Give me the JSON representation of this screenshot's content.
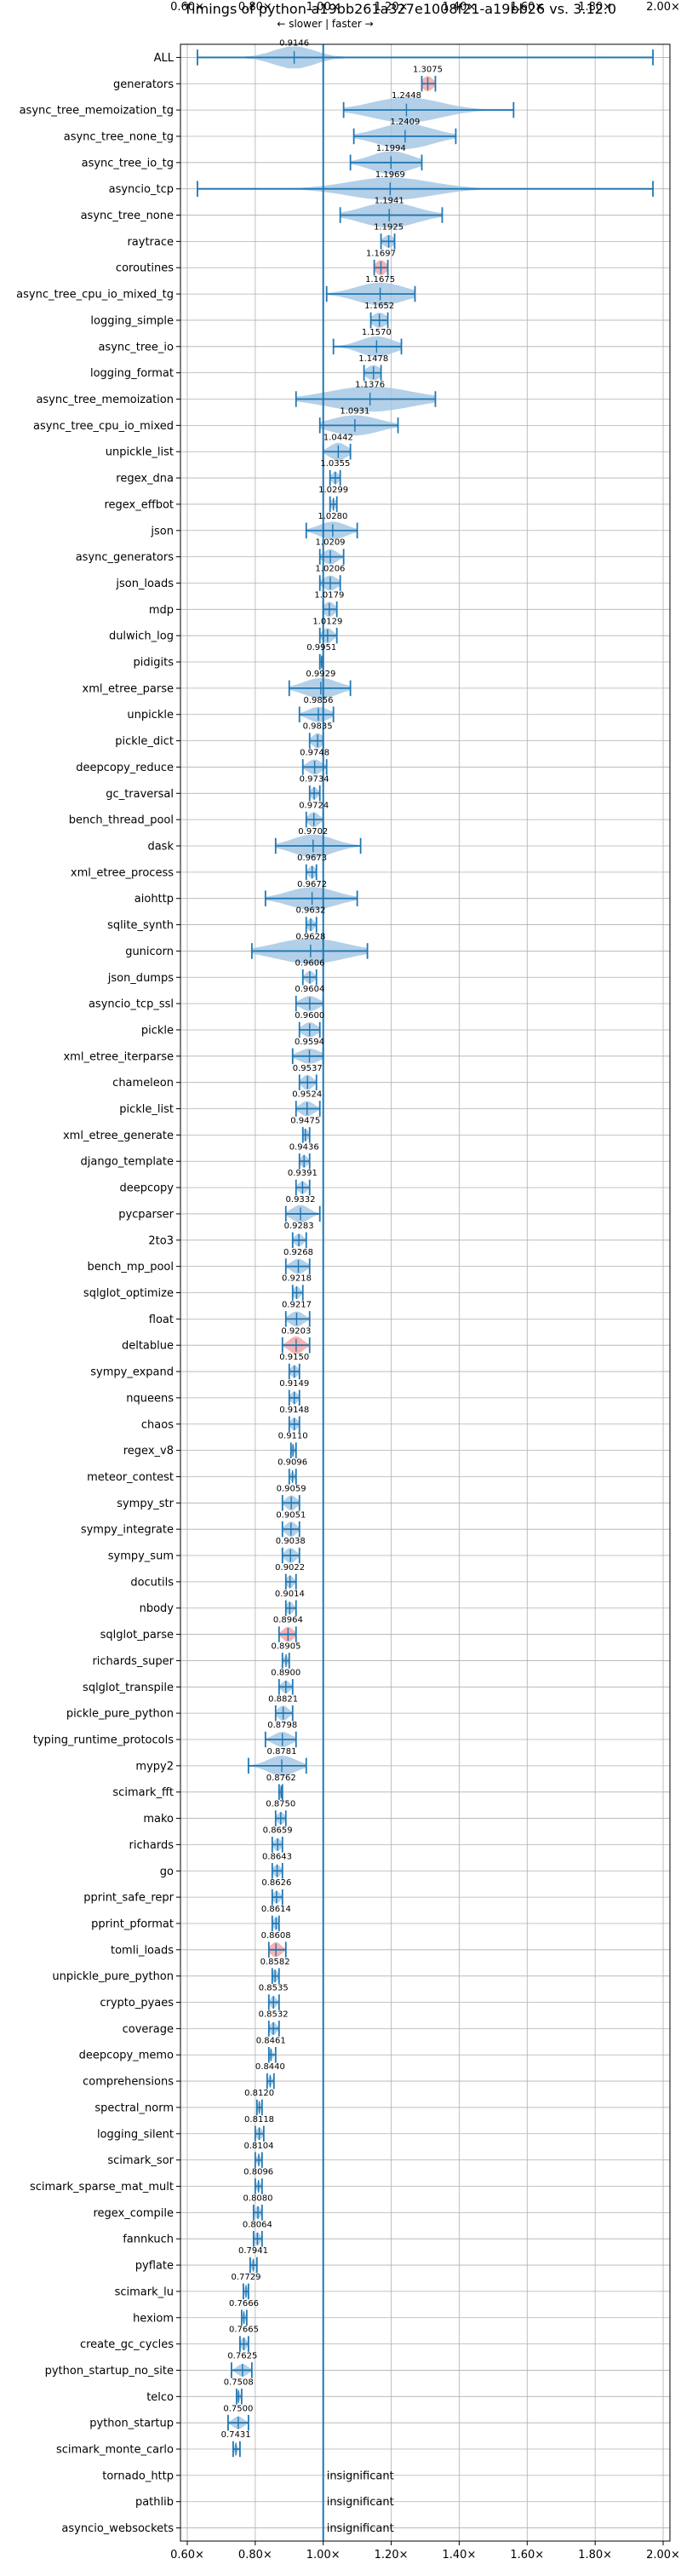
{
  "chart_data": {
    "type": "violin",
    "title": "Timings of python-a19bb261a327e1008f21-a19bb26 vs. 3.12.0",
    "direction_hint": "← slower | faster →",
    "x_ticks": [
      0.6,
      0.8,
      1.0,
      1.2,
      1.4,
      1.6,
      1.8,
      2.0
    ],
    "x_tick_labels": [
      "0.60×",
      "0.80×",
      "1.00×",
      "1.20×",
      "1.40×",
      "1.60×",
      "1.80×",
      "2.00×"
    ],
    "xlim": [
      0.58,
      2.02
    ],
    "reference_line": 1.0,
    "grid": true,
    "colors": {
      "violin": "#a6c8e4",
      "line": "#1f77b4",
      "highlight": "#f4a6a6",
      "grid": "#b0b0b0"
    },
    "benchmarks": [
      {
        "name": "ALL",
        "value": 0.9146,
        "min": 0.63,
        "max": 1.97,
        "spread": 0.06,
        "width": 0.9,
        "label": "0.9146"
      },
      {
        "name": "generators",
        "value": 1.3075,
        "min": 1.29,
        "max": 1.33,
        "spread": 0.015,
        "width": 0.6,
        "label": "1.3075",
        "highlight": true
      },
      {
        "name": "async_tree_memoization_tg",
        "value": 1.2448,
        "min": 1.06,
        "max": 1.56,
        "spread": 0.1,
        "width": 1.0,
        "label": "1.2448"
      },
      {
        "name": "async_tree_none_tg",
        "value": 1.2409,
        "min": 1.09,
        "max": 1.39,
        "spread": 0.08,
        "width": 1.0,
        "label": "1.2409"
      },
      {
        "name": "async_tree_io_tg",
        "value": 1.1994,
        "min": 1.08,
        "max": 1.29,
        "spread": 0.06,
        "width": 0.9,
        "label": "1.1994"
      },
      {
        "name": "asyncio_tcp",
        "value": 1.1969,
        "min": 0.63,
        "max": 1.97,
        "spread": 0.12,
        "width": 0.9,
        "label": "1.1969"
      },
      {
        "name": "async_tree_none",
        "value": 1.1941,
        "min": 1.05,
        "max": 1.35,
        "spread": 0.08,
        "width": 1.0,
        "label": "1.1941"
      },
      {
        "name": "raytrace",
        "value": 1.1925,
        "min": 1.17,
        "max": 1.21,
        "spread": 0.015,
        "width": 0.5,
        "label": "1.1925"
      },
      {
        "name": "coroutines",
        "value": 1.1697,
        "min": 1.15,
        "max": 1.19,
        "spread": 0.015,
        "width": 0.6,
        "label": "1.1697",
        "highlight": true
      },
      {
        "name": "async_tree_cpu_io_mixed_tg",
        "value": 1.1675,
        "min": 1.01,
        "max": 1.27,
        "spread": 0.07,
        "width": 0.9,
        "label": "1.1675"
      },
      {
        "name": "logging_simple",
        "value": 1.1652,
        "min": 1.14,
        "max": 1.19,
        "spread": 0.02,
        "width": 0.6,
        "label": "1.1652"
      },
      {
        "name": "async_tree_io",
        "value": 1.157,
        "min": 1.03,
        "max": 1.23,
        "spread": 0.05,
        "width": 0.8,
        "label": "1.1570"
      },
      {
        "name": "logging_format",
        "value": 1.1478,
        "min": 1.12,
        "max": 1.17,
        "spread": 0.02,
        "width": 0.6,
        "label": "1.1478"
      },
      {
        "name": "async_tree_memoization",
        "value": 1.1376,
        "min": 0.92,
        "max": 1.33,
        "spread": 0.12,
        "width": 1.0,
        "label": "1.1376"
      },
      {
        "name": "async_tree_cpu_io_mixed",
        "value": 1.0931,
        "min": 0.99,
        "max": 1.22,
        "spread": 0.07,
        "width": 0.8,
        "label": "1.0931"
      },
      {
        "name": "unpickle_list",
        "value": 1.0442,
        "min": 1.0,
        "max": 1.08,
        "spread": 0.025,
        "width": 0.7,
        "label": "1.0442"
      },
      {
        "name": "regex_dna",
        "value": 1.0355,
        "min": 1.02,
        "max": 1.05,
        "spread": 0.01,
        "width": 0.5,
        "label": "1.0355"
      },
      {
        "name": "regex_effbot",
        "value": 1.0299,
        "min": 1.02,
        "max": 1.04,
        "spread": 0.008,
        "width": 0.4,
        "label": "1.0299"
      },
      {
        "name": "json",
        "value": 1.028,
        "min": 0.95,
        "max": 1.1,
        "spread": 0.04,
        "width": 0.7,
        "label": "1.0280"
      },
      {
        "name": "async_generators",
        "value": 1.0209,
        "min": 0.99,
        "max": 1.06,
        "spread": 0.02,
        "width": 0.6,
        "label": "1.0209"
      },
      {
        "name": "json_loads",
        "value": 1.0206,
        "min": 0.99,
        "max": 1.05,
        "spread": 0.02,
        "width": 0.6,
        "label": "1.0206"
      },
      {
        "name": "mdp",
        "value": 1.0179,
        "min": 1.0,
        "max": 1.04,
        "spread": 0.015,
        "width": 0.6,
        "label": "1.0179"
      },
      {
        "name": "dulwich_log",
        "value": 1.0129,
        "min": 0.99,
        "max": 1.04,
        "spread": 0.015,
        "width": 0.6,
        "label": "1.0129"
      },
      {
        "name": "pidigits",
        "value": 0.9951,
        "min": 0.99,
        "max": 1.0,
        "spread": 0.005,
        "width": 0.4,
        "label": "0.9951"
      },
      {
        "name": "xml_etree_parse",
        "value": 0.9929,
        "min": 0.9,
        "max": 1.08,
        "spread": 0.05,
        "width": 0.8,
        "label": "0.9929"
      },
      {
        "name": "unpickle",
        "value": 0.9856,
        "min": 0.93,
        "max": 1.03,
        "spread": 0.03,
        "width": 0.6,
        "label": "0.9856"
      },
      {
        "name": "pickle_dict",
        "value": 0.9835,
        "min": 0.96,
        "max": 1.0,
        "spread": 0.015,
        "width": 0.6,
        "label": "0.9835"
      },
      {
        "name": "deepcopy_reduce",
        "value": 0.9748,
        "min": 0.94,
        "max": 1.01,
        "spread": 0.02,
        "width": 0.6,
        "label": "0.9748"
      },
      {
        "name": "gc_traversal",
        "value": 0.9734,
        "min": 0.96,
        "max": 0.99,
        "spread": 0.01,
        "width": 0.5,
        "label": "0.9734"
      },
      {
        "name": "bench_thread_pool",
        "value": 0.9724,
        "min": 0.95,
        "max": 1.0,
        "spread": 0.015,
        "width": 0.6,
        "label": "0.9724"
      },
      {
        "name": "dask",
        "value": 0.9702,
        "min": 0.86,
        "max": 1.11,
        "spread": 0.06,
        "width": 0.9,
        "label": "0.9702"
      },
      {
        "name": "xml_etree_process",
        "value": 0.9673,
        "min": 0.95,
        "max": 0.98,
        "spread": 0.01,
        "width": 0.5,
        "label": "0.9673"
      },
      {
        "name": "aiohttp",
        "value": 0.9672,
        "min": 0.83,
        "max": 1.1,
        "spread": 0.07,
        "width": 0.9,
        "label": "0.9672"
      },
      {
        "name": "sqlite_synth",
        "value": 0.9632,
        "min": 0.95,
        "max": 0.98,
        "spread": 0.01,
        "width": 0.5,
        "label": "0.9632"
      },
      {
        "name": "gunicorn",
        "value": 0.9628,
        "min": 0.79,
        "max": 1.13,
        "spread": 0.1,
        "width": 1.0,
        "label": "0.9628"
      },
      {
        "name": "json_dumps",
        "value": 0.9606,
        "min": 0.94,
        "max": 0.98,
        "spread": 0.012,
        "width": 0.5,
        "label": "0.9606"
      },
      {
        "name": "asyncio_tcp_ssl",
        "value": 0.9604,
        "min": 0.92,
        "max": 1.0,
        "spread": 0.025,
        "width": 0.6,
        "label": "0.9604"
      },
      {
        "name": "pickle",
        "value": 0.96,
        "min": 0.93,
        "max": 0.99,
        "spread": 0.02,
        "width": 0.6,
        "label": "0.9600"
      },
      {
        "name": "xml_etree_iterparse",
        "value": 0.9594,
        "min": 0.91,
        "max": 1.0,
        "spread": 0.03,
        "width": 0.6,
        "label": "0.9594"
      },
      {
        "name": "chameleon",
        "value": 0.9537,
        "min": 0.93,
        "max": 0.98,
        "spread": 0.015,
        "width": 0.6,
        "label": "0.9537"
      },
      {
        "name": "pickle_list",
        "value": 0.9524,
        "min": 0.92,
        "max": 0.99,
        "spread": 0.02,
        "width": 0.6,
        "label": "0.9524"
      },
      {
        "name": "xml_etree_generate",
        "value": 0.9475,
        "min": 0.94,
        "max": 0.96,
        "spread": 0.008,
        "width": 0.5,
        "label": "0.9475"
      },
      {
        "name": "django_template",
        "value": 0.9436,
        "min": 0.93,
        "max": 0.96,
        "spread": 0.01,
        "width": 0.5,
        "label": "0.9436"
      },
      {
        "name": "deepcopy",
        "value": 0.9391,
        "min": 0.92,
        "max": 0.96,
        "spread": 0.012,
        "width": 0.5,
        "label": "0.9391"
      },
      {
        "name": "pycparser",
        "value": 0.9332,
        "min": 0.89,
        "max": 0.99,
        "spread": 0.025,
        "width": 0.7,
        "label": "0.9332"
      },
      {
        "name": "2to3",
        "value": 0.9283,
        "min": 0.91,
        "max": 0.95,
        "spread": 0.012,
        "width": 0.5,
        "label": "0.9283"
      },
      {
        "name": "bench_mp_pool",
        "value": 0.9268,
        "min": 0.89,
        "max": 0.96,
        "spread": 0.02,
        "width": 0.6,
        "label": "0.9268"
      },
      {
        "name": "sqlglot_optimize",
        "value": 0.9218,
        "min": 0.91,
        "max": 0.94,
        "spread": 0.01,
        "width": 0.5,
        "label": "0.9218"
      },
      {
        "name": "float",
        "value": 0.9217,
        "min": 0.89,
        "max": 0.96,
        "spread": 0.02,
        "width": 0.6,
        "label": "0.9217"
      },
      {
        "name": "deltablue",
        "value": 0.9203,
        "min": 0.88,
        "max": 0.96,
        "spread": 0.02,
        "width": 0.7,
        "label": "0.9203",
        "highlight": true
      },
      {
        "name": "sympy_expand",
        "value": 0.915,
        "min": 0.9,
        "max": 0.93,
        "spread": 0.01,
        "width": 0.5,
        "label": "0.9150"
      },
      {
        "name": "nqueens",
        "value": 0.9149,
        "min": 0.9,
        "max": 0.93,
        "spread": 0.01,
        "width": 0.5,
        "label": "0.9149"
      },
      {
        "name": "chaos",
        "value": 0.9148,
        "min": 0.9,
        "max": 0.93,
        "spread": 0.01,
        "width": 0.5,
        "label": "0.9148"
      },
      {
        "name": "regex_v8",
        "value": 0.911,
        "min": 0.905,
        "max": 0.92,
        "spread": 0.005,
        "width": 0.4,
        "label": "0.9110"
      },
      {
        "name": "meteor_contest",
        "value": 0.9096,
        "min": 0.9,
        "max": 0.92,
        "spread": 0.006,
        "width": 0.4,
        "label": "0.9096"
      },
      {
        "name": "sympy_str",
        "value": 0.9059,
        "min": 0.88,
        "max": 0.93,
        "spread": 0.015,
        "width": 0.6,
        "label": "0.9059"
      },
      {
        "name": "sympy_integrate",
        "value": 0.9051,
        "min": 0.88,
        "max": 0.93,
        "spread": 0.015,
        "width": 0.6,
        "label": "0.9051"
      },
      {
        "name": "sympy_sum",
        "value": 0.9038,
        "min": 0.88,
        "max": 0.93,
        "spread": 0.015,
        "width": 0.6,
        "label": "0.9038"
      },
      {
        "name": "docutils",
        "value": 0.9022,
        "min": 0.89,
        "max": 0.92,
        "spread": 0.01,
        "width": 0.5,
        "label": "0.9022"
      },
      {
        "name": "nbody",
        "value": 0.9014,
        "min": 0.89,
        "max": 0.92,
        "spread": 0.01,
        "width": 0.5,
        "label": "0.9014"
      },
      {
        "name": "sqlglot_parse",
        "value": 0.8964,
        "min": 0.87,
        "max": 0.92,
        "spread": 0.015,
        "width": 0.6,
        "label": "0.8964",
        "highlight": true
      },
      {
        "name": "richards_super",
        "value": 0.8905,
        "min": 0.88,
        "max": 0.9,
        "spread": 0.006,
        "width": 0.4,
        "label": "0.8905"
      },
      {
        "name": "sqlglot_transpile",
        "value": 0.89,
        "min": 0.87,
        "max": 0.91,
        "spread": 0.012,
        "width": 0.5,
        "label": "0.8900"
      },
      {
        "name": "pickle_pure_python",
        "value": 0.8821,
        "min": 0.86,
        "max": 0.91,
        "spread": 0.015,
        "width": 0.6,
        "label": "0.8821"
      },
      {
        "name": "typing_runtime_protocols",
        "value": 0.8798,
        "min": 0.83,
        "max": 0.92,
        "spread": 0.025,
        "width": 0.6,
        "label": "0.8798"
      },
      {
        "name": "mypy2",
        "value": 0.8781,
        "min": 0.78,
        "max": 0.95,
        "spread": 0.04,
        "width": 0.8,
        "label": "0.8781"
      },
      {
        "name": "scimark_fft",
        "value": 0.8762,
        "min": 0.87,
        "max": 0.88,
        "spread": 0.004,
        "width": 0.4,
        "label": "0.8762"
      },
      {
        "name": "mako",
        "value": 0.875,
        "min": 0.86,
        "max": 0.89,
        "spread": 0.01,
        "width": 0.5,
        "label": "0.8750"
      },
      {
        "name": "richards",
        "value": 0.8659,
        "min": 0.85,
        "max": 0.88,
        "spread": 0.01,
        "width": 0.5,
        "label": "0.8659"
      },
      {
        "name": "go",
        "value": 0.8643,
        "min": 0.85,
        "max": 0.88,
        "spread": 0.01,
        "width": 0.5,
        "label": "0.8643"
      },
      {
        "name": "pprint_safe_repr",
        "value": 0.8626,
        "min": 0.85,
        "max": 0.88,
        "spread": 0.01,
        "width": 0.5,
        "label": "0.8626"
      },
      {
        "name": "pprint_pformat",
        "value": 0.8614,
        "min": 0.85,
        "max": 0.87,
        "spread": 0.008,
        "width": 0.5,
        "label": "0.8614"
      },
      {
        "name": "tomli_loads",
        "value": 0.8608,
        "min": 0.84,
        "max": 0.89,
        "spread": 0.015,
        "width": 0.6,
        "label": "0.8608",
        "highlight": true
      },
      {
        "name": "unpickle_pure_python",
        "value": 0.8582,
        "min": 0.85,
        "max": 0.87,
        "spread": 0.008,
        "width": 0.5,
        "label": "0.8582"
      },
      {
        "name": "crypto_pyaes",
        "value": 0.8535,
        "min": 0.84,
        "max": 0.87,
        "spread": 0.008,
        "width": 0.5,
        "label": "0.8535"
      },
      {
        "name": "coverage",
        "value": 0.8532,
        "min": 0.84,
        "max": 0.87,
        "spread": 0.01,
        "width": 0.5,
        "label": "0.8532"
      },
      {
        "name": "deepcopy_memo",
        "value": 0.8461,
        "min": 0.84,
        "max": 0.86,
        "spread": 0.006,
        "width": 0.4,
        "label": "0.8461"
      },
      {
        "name": "comprehensions",
        "value": 0.844,
        "min": 0.835,
        "max": 0.855,
        "spread": 0.006,
        "width": 0.4,
        "label": "0.8440"
      },
      {
        "name": "spectral_norm",
        "value": 0.812,
        "min": 0.805,
        "max": 0.82,
        "spread": 0.005,
        "width": 0.4,
        "label": "0.8120"
      },
      {
        "name": "logging_silent",
        "value": 0.8118,
        "min": 0.8,
        "max": 0.825,
        "spread": 0.008,
        "width": 0.5,
        "label": "0.8118"
      },
      {
        "name": "scimark_sor",
        "value": 0.8104,
        "min": 0.8,
        "max": 0.82,
        "spread": 0.006,
        "width": 0.4,
        "label": "0.8104"
      },
      {
        "name": "scimark_sparse_mat_mult",
        "value": 0.8096,
        "min": 0.8,
        "max": 0.82,
        "spread": 0.006,
        "width": 0.4,
        "label": "0.8096"
      },
      {
        "name": "regex_compile",
        "value": 0.808,
        "min": 0.795,
        "max": 0.82,
        "spread": 0.008,
        "width": 0.5,
        "label": "0.8080"
      },
      {
        "name": "fannkuch",
        "value": 0.8064,
        "min": 0.795,
        "max": 0.82,
        "spread": 0.008,
        "width": 0.5,
        "label": "0.8064"
      },
      {
        "name": "pyflate",
        "value": 0.7941,
        "min": 0.785,
        "max": 0.805,
        "spread": 0.006,
        "width": 0.4,
        "label": "0.7941"
      },
      {
        "name": "scimark_lu",
        "value": 0.7729,
        "min": 0.765,
        "max": 0.78,
        "spread": 0.005,
        "width": 0.4,
        "label": "0.7729"
      },
      {
        "name": "hexiom",
        "value": 0.7666,
        "min": 0.76,
        "max": 0.775,
        "spread": 0.005,
        "width": 0.4,
        "label": "0.7666"
      },
      {
        "name": "create_gc_cycles",
        "value": 0.7665,
        "min": 0.755,
        "max": 0.78,
        "spread": 0.008,
        "width": 0.5,
        "label": "0.7665"
      },
      {
        "name": "python_startup_no_site",
        "value": 0.7625,
        "min": 0.73,
        "max": 0.79,
        "spread": 0.015,
        "width": 0.5,
        "label": "0.7625"
      },
      {
        "name": "telco",
        "value": 0.7508,
        "min": 0.745,
        "max": 0.76,
        "spread": 0.005,
        "width": 0.4,
        "label": "0.7508"
      },
      {
        "name": "python_startup",
        "value": 0.75,
        "min": 0.72,
        "max": 0.78,
        "spread": 0.015,
        "width": 0.5,
        "label": "0.7500"
      },
      {
        "name": "scimark_monte_carlo",
        "value": 0.7431,
        "min": 0.735,
        "max": 0.755,
        "spread": 0.005,
        "width": 0.4,
        "label": "0.7431"
      },
      {
        "name": "tornado_http",
        "insignificant": true,
        "label": "insignificant"
      },
      {
        "name": "pathlib",
        "insignificant": true,
        "label": "insignificant"
      },
      {
        "name": "asyncio_websockets",
        "insignificant": true,
        "label": "insignificant"
      }
    ]
  }
}
